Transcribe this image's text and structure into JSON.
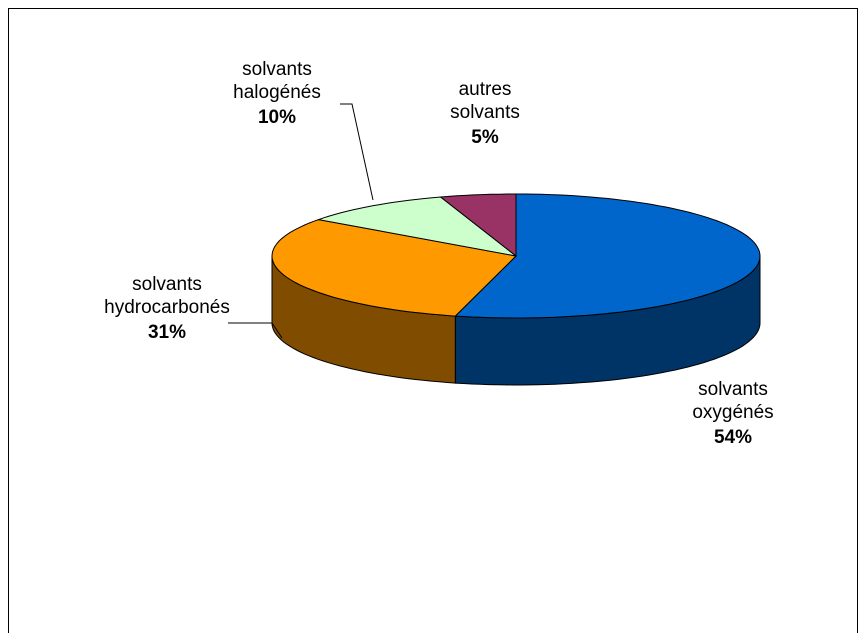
{
  "chart_data": {
    "type": "pie3d",
    "categories": [
      "solvants oxygénés",
      "solvants hydrocarbonés",
      "solvants halogénés",
      "autres solvants"
    ],
    "values": [
      54,
      31,
      10,
      5
    ],
    "value_labels": [
      "54%",
      "31%",
      "10%",
      "5%"
    ],
    "colors": [
      "#0066cc",
      "#ff9900",
      "#ccffcc",
      "#993366"
    ]
  }
}
